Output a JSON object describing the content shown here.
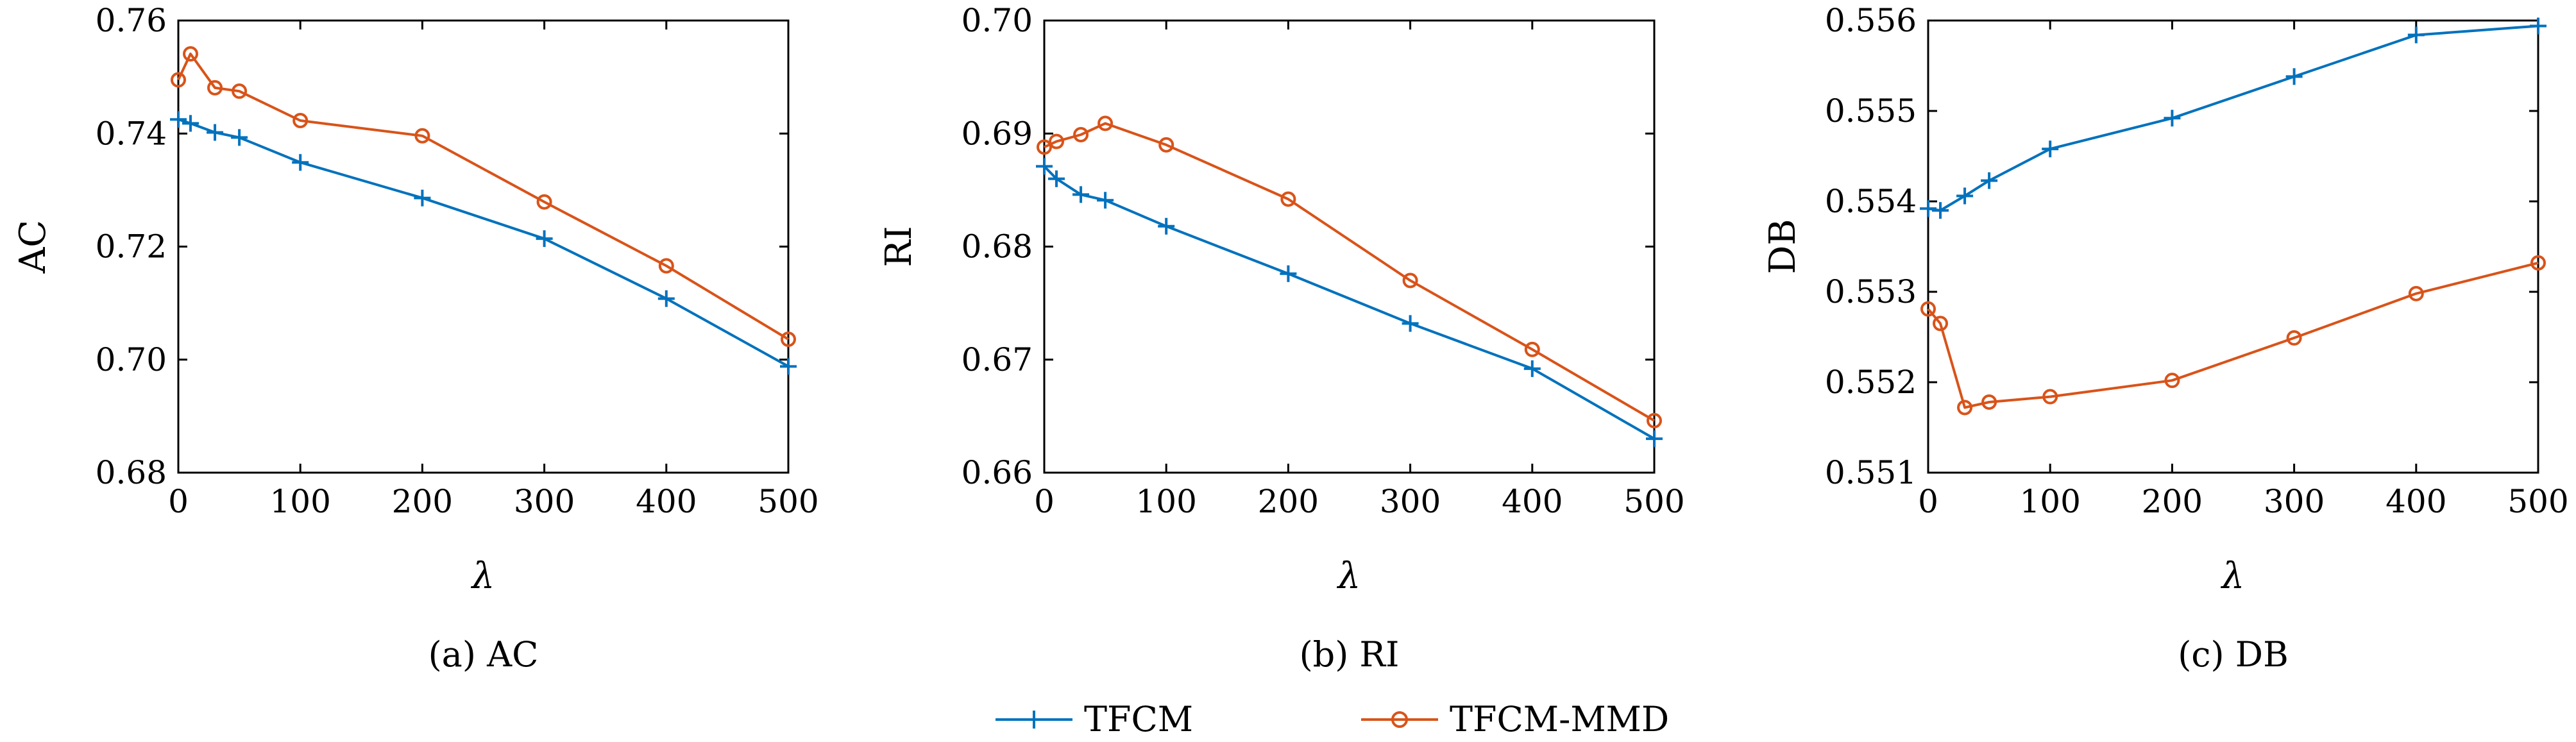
{
  "chart_data": [
    {
      "type": "line",
      "caption": "(a) AC",
      "ylabel": "AC",
      "xlabel": "λ",
      "xlim": [
        0,
        500
      ],
      "ylim": [
        0.68,
        0.76
      ],
      "xticks": [
        0,
        100,
        200,
        300,
        400,
        500
      ],
      "xtick_labels": [
        "0",
        "100",
        "200",
        "300",
        "400",
        "500"
      ],
      "yticks": [
        0.68,
        0.7,
        0.72,
        0.74,
        0.76
      ],
      "ytick_labels": [
        "0.68",
        "0.70",
        "0.72",
        "0.74",
        "0.76"
      ],
      "series": [
        {
          "name": "TFCM",
          "x": [
            0,
            10,
            30,
            50,
            100,
            200,
            300,
            400,
            500
          ],
          "y": [
            0.7425,
            0.7418,
            0.7402,
            0.7393,
            0.7349,
            0.7286,
            0.7214,
            0.7108,
            0.6988
          ]
        },
        {
          "name": "TFCM-MMD",
          "x": [
            0,
            10,
            30,
            50,
            100,
            200,
            300,
            400,
            500
          ],
          "y": [
            0.7495,
            0.7541,
            0.7481,
            0.7475,
            0.7423,
            0.7396,
            0.7279,
            0.7166,
            0.7036
          ]
        }
      ]
    },
    {
      "type": "line",
      "caption": "(b) RI",
      "ylabel": "RI",
      "xlabel": "λ",
      "xlim": [
        0,
        500
      ],
      "ylim": [
        0.66,
        0.7
      ],
      "xticks": [
        0,
        100,
        200,
        300,
        400,
        500
      ],
      "xtick_labels": [
        "0",
        "100",
        "200",
        "300",
        "400",
        "500"
      ],
      "yticks": [
        0.66,
        0.67,
        0.68,
        0.69,
        0.7
      ],
      "ytick_labels": [
        "0.66",
        "0.67",
        "0.68",
        "0.69",
        "0.70"
      ],
      "series": [
        {
          "name": "TFCM",
          "x": [
            0,
            10,
            30,
            50,
            100,
            200,
            300,
            400,
            500
          ],
          "y": [
            0.6871,
            0.686,
            0.6846,
            0.6841,
            0.6818,
            0.6776,
            0.6732,
            0.6692,
            0.663
          ]
        },
        {
          "name": "TFCM-MMD",
          "x": [
            0,
            10,
            30,
            50,
            100,
            200,
            300,
            400,
            500
          ],
          "y": [
            0.6888,
            0.6893,
            0.6899,
            0.6909,
            0.689,
            0.6842,
            0.677,
            0.6709,
            0.6646
          ]
        }
      ]
    },
    {
      "type": "line",
      "caption": "(c) DB",
      "ylabel": "DB",
      "xlabel": "λ",
      "xlim": [
        0,
        500
      ],
      "ylim": [
        0.551,
        0.556
      ],
      "xticks": [
        0,
        100,
        200,
        300,
        400,
        500
      ],
      "xtick_labels": [
        "0",
        "100",
        "200",
        "300",
        "400",
        "500"
      ],
      "yticks": [
        0.551,
        0.552,
        0.553,
        0.554,
        0.555,
        0.556
      ],
      "ytick_labels": [
        "0.551",
        "0.552",
        "0.553",
        "0.554",
        "0.555",
        "0.556"
      ],
      "series": [
        {
          "name": "TFCM",
          "x": [
            0,
            10,
            30,
            50,
            100,
            200,
            300,
            400,
            500
          ],
          "y": [
            0.55392,
            0.5539,
            0.55406,
            0.55423,
            0.55458,
            0.55492,
            0.55538,
            0.55584,
            0.55594
          ]
        },
        {
          "name": "TFCM-MMD",
          "x": [
            0,
            10,
            30,
            50,
            100,
            200,
            300,
            400,
            500
          ],
          "y": [
            0.55281,
            0.55265,
            0.55172,
            0.55178,
            0.55184,
            0.55202,
            0.55249,
            0.55298,
            0.55332
          ]
        }
      ]
    }
  ],
  "legend": {
    "position": "bottom-center",
    "items": [
      {
        "label": "TFCM",
        "marker": "plus",
        "color": "#0072BD"
      },
      {
        "label": "TFCM-MMD",
        "marker": "circle",
        "color": "#D95319"
      }
    ]
  },
  "colors": {
    "TFCM": "#0072BD",
    "TFCM-MMD": "#D95319",
    "axis": "#000000"
  }
}
